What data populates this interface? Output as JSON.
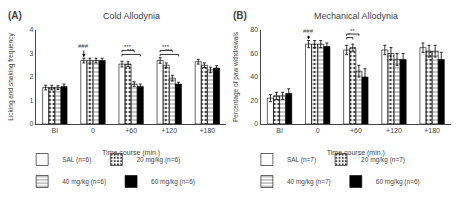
{
  "chart_data": [
    {
      "type": "bar",
      "title": "Cold Allodynia",
      "xlabel": "Time course (min.)",
      "ylabel": "Licking and shaking frequency",
      "categories": [
        "BI",
        "0",
        "+60",
        "+120",
        "+180"
      ],
      "series": [
        {
          "name": "SAL (n=6)",
          "color": "white",
          "values": [
            1.55,
            2.7,
            2.55,
            2.7,
            2.65
          ],
          "errors": [
            0.1,
            0.1,
            0.12,
            0.12,
            0.1
          ]
        },
        {
          "name": "20 mg/kg (n=6)",
          "color": "#444444",
          "values": [
            1.55,
            2.7,
            2.55,
            2.5,
            2.5
          ],
          "errors": [
            0.1,
            0.1,
            0.1,
            0.1,
            0.1
          ]
        },
        {
          "name": "40 mg/kg (n=6)",
          "color": "#aaaaaa",
          "values": [
            1.55,
            2.7,
            1.7,
            1.95,
            2.3
          ],
          "errors": [
            0.08,
            0.1,
            0.1,
            0.12,
            0.12
          ]
        },
        {
          "name": "60 mg/kg (n=6)",
          "color": "black",
          "values": [
            1.6,
            2.7,
            1.6,
            1.7,
            2.38
          ],
          "errors": [
            0.1,
            0.1,
            0.1,
            0.08,
            0.1
          ]
        }
      ],
      "ylim": [
        0,
        4
      ],
      "yticks": [
        0,
        1,
        2,
        3,
        4
      ],
      "grid": false,
      "annotations": [
        {
          "text": "(A)"
        },
        {
          "text": "###",
          "x": "0",
          "y": 3.32
        },
        {
          "text": "***",
          "x": "+60",
          "y": 3.05,
          "between": [
            "SAL (n=6)",
            "40 mg/kg (n=6)"
          ]
        },
        {
          "text": "***",
          "x": "+60",
          "y": 2.88,
          "between": [
            "SAL (n=6)",
            "60 mg/kg (n=6)"
          ]
        },
        {
          "text": "***",
          "x": "+120",
          "y": 3.05,
          "between": [
            "SAL (n=6)",
            "40 mg/kg (n=6)"
          ]
        },
        {
          "text": "***",
          "x": "+120",
          "y": 2.88,
          "between": [
            "SAL (n=6)",
            "60 mg/kg (n=6)"
          ]
        }
      ]
    },
    {
      "type": "bar",
      "title": "Mechanical Allodynia",
      "xlabel": "Time course (min.)",
      "ylabel": "Percentage of paw withdrawals",
      "categories": [
        "BI",
        "0",
        "+60",
        "+120",
        "+180"
      ],
      "series": [
        {
          "name": "SAL (n=7)",
          "color": "white",
          "values": [
            22,
            68,
            63,
            63,
            65
          ],
          "errors": [
            3,
            3,
            4,
            4,
            4
          ]
        },
        {
          "name": "20 mg/kg (n=7)",
          "color": "#444444",
          "values": [
            24,
            68,
            65,
            60,
            62
          ],
          "errors": [
            3,
            3,
            3,
            5,
            5
          ]
        },
        {
          "name": "40 mg/kg (n=7)",
          "color": "#aaaaaa",
          "values": [
            24,
            68,
            45,
            55,
            62
          ],
          "errors": [
            3,
            3,
            5,
            5,
            5
          ]
        },
        {
          "name": "60 mg/kg (n=6)",
          "color": "black",
          "values": [
            26,
            66,
            40,
            55,
            55
          ],
          "errors": [
            4,
            3,
            7,
            5,
            6
          ]
        }
      ],
      "ylim": [
        0,
        80
      ],
      "yticks": [
        0,
        20,
        40,
        60,
        80
      ],
      "grid": false,
      "annotations": [
        {
          "text": "(B)"
        },
        {
          "text": "###",
          "x": "0",
          "y": 79
        },
        {
          "text": "*",
          "x": "+60",
          "y": 72,
          "between": [
            "SAL (n=7)",
            "20 mg/kg (n=7)"
          ]
        },
        {
          "text": "**",
          "x": "+60",
          "y": 75,
          "between": [
            "SAL (n=7)",
            "40 mg/kg (n=7)"
          ]
        }
      ]
    }
  ]
}
